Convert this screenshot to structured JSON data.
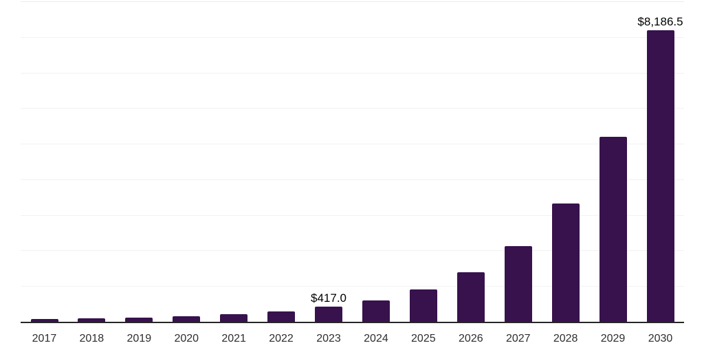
{
  "chart": {
    "bar_color": "#37124d",
    "axis_line_color": "#262626",
    "gridline_color": "#f2f2f2",
    "gridline_top_color": "#ececec",
    "tick_label_color": "#2e2e2e",
    "data_label_color": "#000000"
  },
  "chart_data": {
    "type": "bar",
    "title": "",
    "xlabel": "",
    "ylabel": "",
    "categories": [
      "2017",
      "2018",
      "2019",
      "2020",
      "2021",
      "2022",
      "2023",
      "2024",
      "2025",
      "2026",
      "2027",
      "2028",
      "2029",
      "2030"
    ],
    "values": [
      70,
      90,
      120,
      148,
      215,
      290,
      417.0,
      595,
      900,
      1385,
      2130,
      3330,
      5195,
      8186.5
    ],
    "labeled_values": [
      {
        "year": "2023",
        "value": 417.0,
        "text": "$417.0"
      },
      {
        "year": "2030",
        "value": 8186.5,
        "text": "$8,186.5"
      }
    ],
    "currency_prefix": "$",
    "ylim": [
      0,
      9000
    ],
    "gridline_step": 1000,
    "grid": "horizontal-only",
    "y_axis_tick_labels": "none",
    "legend": "none"
  }
}
